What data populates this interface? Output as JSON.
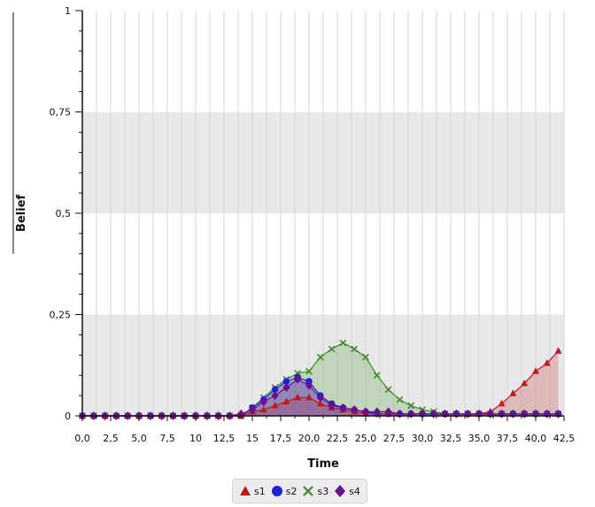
{
  "chart_data": {
    "type": "area",
    "xlabel": "Time",
    "ylabel": "Belief",
    "xlim": [
      0,
      42.5
    ],
    "ylim": [
      0,
      1
    ],
    "grid": true,
    "legend_position": "bottom-center",
    "x_ticks": [
      "0,0",
      "2,5",
      "5,0",
      "7,5",
      "10",
      "12,5",
      "15",
      "17,5",
      "20,0",
      "22,5",
      "25,0",
      "27,5",
      "30,0",
      "32,5",
      "35,0",
      "37,5",
      "40,0",
      "42,5"
    ],
    "y_ticks": [
      "0",
      "0,25",
      "0,5",
      "0,75",
      "1"
    ],
    "x": [
      0,
      1,
      2,
      3,
      4,
      5,
      6,
      7,
      8,
      9,
      10,
      11,
      12,
      13,
      14,
      15,
      16,
      17,
      18,
      19,
      20,
      21,
      22,
      23,
      24,
      25,
      26,
      27,
      28,
      29,
      30,
      31,
      32,
      33,
      34,
      35,
      36,
      37,
      38,
      39,
      40,
      41,
      42
    ],
    "series": [
      {
        "name": "s1",
        "marker": "triangle",
        "color": "#c0191c",
        "values": [
          0,
          0,
          0,
          0,
          0,
          0,
          0,
          0,
          0,
          0,
          0,
          0,
          0,
          0,
          0,
          0.01,
          0.015,
          0.025,
          0.035,
          0.045,
          0.045,
          0.03,
          0.02,
          0.015,
          0.01,
          0.005,
          0.005,
          0.005,
          0.005,
          0.005,
          0.005,
          0.005,
          0.005,
          0.005,
          0.005,
          0.005,
          0.01,
          0.03,
          0.055,
          0.08,
          0.11,
          0.13,
          0.16
        ]
      },
      {
        "name": "s2",
        "marker": "circle",
        "color": "#1f1fd6",
        "values": [
          0,
          0,
          0,
          0,
          0,
          0,
          0,
          0,
          0,
          0,
          0,
          0,
          0,
          0,
          0,
          0.02,
          0.04,
          0.065,
          0.085,
          0.095,
          0.085,
          0.05,
          0.03,
          0.02,
          0.015,
          0.01,
          0.005,
          0.005,
          0.005,
          0.005,
          0.005,
          0.005,
          0.005,
          0.005,
          0.005,
          0.005,
          0.005,
          0.005,
          0.005,
          0.005,
          0.005,
          0.005,
          0.005
        ]
      },
      {
        "name": "s3",
        "marker": "cross",
        "color": "#3d8a2a",
        "values": [
          0,
          0,
          0,
          0,
          0,
          0,
          0,
          0,
          0,
          0,
          0,
          0,
          0,
          0,
          0,
          0.02,
          0.045,
          0.07,
          0.09,
          0.105,
          0.11,
          0.145,
          0.165,
          0.18,
          0.165,
          0.145,
          0.1,
          0.065,
          0.04,
          0.025,
          0.015,
          0.01,
          0.005,
          0.005,
          0.005,
          0.005,
          0.005,
          0.005,
          0.005,
          0.005,
          0.005,
          0.005,
          0.005
        ]
      },
      {
        "name": "s4",
        "marker": "diamond",
        "color": "#6a0f8e",
        "values": [
          0,
          0,
          0,
          0,
          0,
          0,
          0,
          0,
          0,
          0,
          0,
          0,
          0,
          0,
          0.005,
          0.015,
          0.035,
          0.05,
          0.07,
          0.09,
          0.075,
          0.045,
          0.025,
          0.02,
          0.015,
          0.01,
          0.01,
          0.01,
          0.005,
          0.005,
          0.005,
          0.005,
          0.005,
          0.005,
          0.005,
          0.005,
          0.005,
          0.005,
          0.005,
          0.005,
          0.005,
          0.005,
          0.005
        ]
      }
    ]
  }
}
